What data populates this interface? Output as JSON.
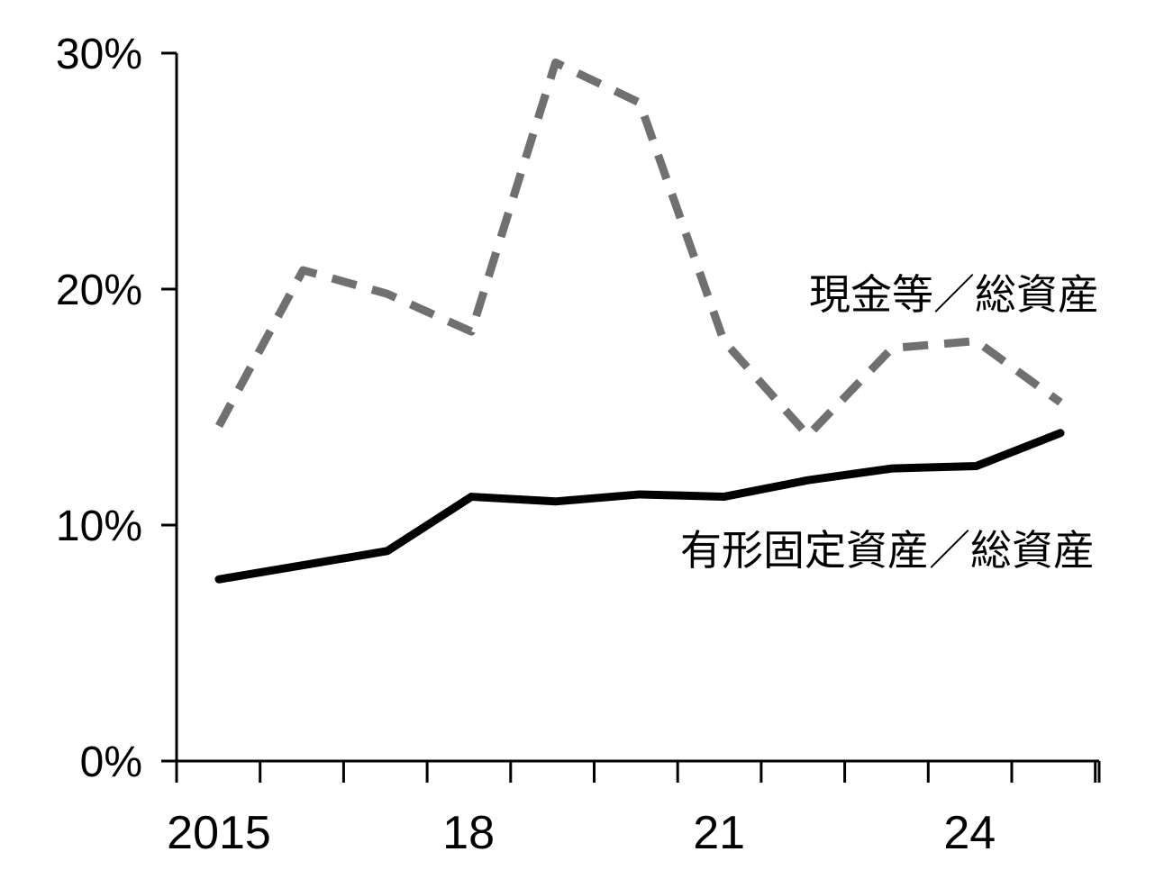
{
  "chart_data": {
    "type": "line",
    "title": "",
    "xlabel": "",
    "ylabel": "",
    "x": [
      2015,
      2016,
      2017,
      2018,
      2019,
      2020,
      2021,
      2022,
      2023,
      2024,
      2025
    ],
    "x_ticks": [
      2015,
      2016,
      2017,
      2018,
      2019,
      2020,
      2021,
      2022,
      2023,
      2024,
      2025,
      2026
    ],
    "x_tick_labels": [
      "2015",
      "",
      "",
      "18",
      "",
      "",
      "21",
      "",
      "",
      "24",
      "",
      ""
    ],
    "ylim": [
      0,
      30
    ],
    "y_ticks": [
      0,
      10,
      20,
      30
    ],
    "y_tick_labels": [
      "0%",
      "10%",
      "20%",
      "30%"
    ],
    "grid": false,
    "series": [
      {
        "name": "現金等／総資産",
        "style": "dashed",
        "color": "#707070",
        "values": [
          14.2,
          20.8,
          19.8,
          18.2,
          29.6,
          27.9,
          17.8,
          13.8,
          17.5,
          17.8,
          15.2
        ]
      },
      {
        "name": "有形固定資産／総資産",
        "style": "solid",
        "color": "#000000",
        "values": [
          7.7,
          8.3,
          8.9,
          11.2,
          11.0,
          11.3,
          11.2,
          11.9,
          12.4,
          12.5,
          13.9
        ]
      }
    ]
  }
}
